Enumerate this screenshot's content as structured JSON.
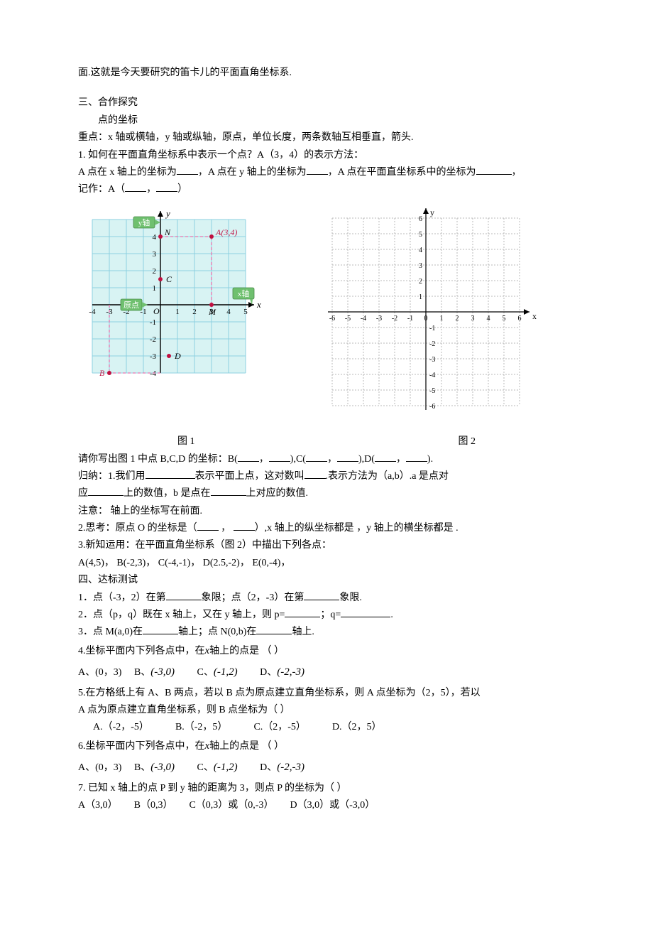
{
  "intro": {
    "line1": "面.这就是今天要研究的笛卡儿的平面直角坐标系."
  },
  "section3": {
    "heading": "三、合作探究",
    "sub": "点的坐标",
    "keypoint": "重点：x 轴或横轴，y 轴或纵轴，原点，单位长度，两条数轴互相垂直，箭头.",
    "q1_line1": "1. 如何在平面直角坐标系中表示一个点？A（3，4）的表示方法：",
    "q1_label_a": "A 点在 x 轴上的坐标为",
    "q1_label_b": "，A 点在 y 轴上的坐标为",
    "q1_label_c": "，A 点在平面直坐标系中的坐标为",
    "q1_label_end": "，",
    "q1_line3_prefix": "记作：A（",
    "q1_line3_mid": "，",
    "q1_line3_suffix": "）",
    "fig1_caption": "图 1",
    "fig2_caption": "图 2",
    "writebcd_prefix": "请你写出图 1 中点 B,C,D 的坐标：B(",
    "writebcd_sep": "，",
    "writebcd_mid1": "),C(",
    "writebcd_mid2": "),D(",
    "writebcd_end": ").",
    "guinao_label": "归纳：1.我们用",
    "guinao_mid": "表示平面上点，这对数叫",
    "guinao_tail": ".表示方法为（a,b）.a 是点对",
    "guinao_line2_prefix": "应",
    "guinao_line2_mid": "上的数值，b 是点在",
    "guinao_line2_tail": "上对应的数值.",
    "note": "注意：       轴上的坐标写在前面.",
    "think_prefix": "2.思考：原点 O 的坐标是（",
    "think_sep": " ， ",
    "think_mid": "）,x 轴上的纵坐标都是    ，y 轴上的横坐标都是    .",
    "newknow": "3.新知运用：在平面直角坐标系（图 2）中描出下列各点：",
    "points": "A(4,5)，  B(-2,3)，  C(-4,-1)，  D(2.5,-2)，  E(0,-4)，"
  },
  "section4": {
    "heading": "四、达标测试",
    "q1_a": "1．点（-3，2）在第",
    "q1_b": "象限；点（2，-3）在第",
    "q1_c": "象限.",
    "q2_a": "2．点（p，q）既在 x 轴上，又在 y 轴上，则 p=",
    "q2_b": "；q=",
    "q2_c": ".",
    "q3_a": "3．点 M(a,0)在",
    "q3_b": "轴上；点 N(0,b)在",
    "q3_c": "轴上.",
    "q4": "4.坐标平面内下列各点中，在",
    "q4_x": "x",
    "q4_tail": "轴上的点是     （    ）",
    "q4_optA": "A、(0，3)",
    "q4_optB_label": "B、",
    "q4_optB_val": "(-3,0)",
    "q4_optC_label": "C、",
    "q4_optC_val": "(-1,2)",
    "q4_optD_label": "D、",
    "q4_optD_val": "(-2,-3)",
    "q5_line1": "5.在方格纸上有 A、B 两点，若以 B 点为原点建立直角坐标系，则 A 点坐标为（2，5），若以",
    "q5_line2": "A 点为原点建立直角坐标系，则 B 点坐标为（  ）",
    "q5_optA": "A.（-2，-5）",
    "q5_optB": "B.（-2，5）",
    "q5_optC": "C.（2，-5）",
    "q5_optD": "D.（2，5）",
    "q6": "6.坐标平面内下列各点中，在",
    "q6_x": "x",
    "q6_tail": "轴上的点是     （    ）",
    "q7_line": "7. 已知 x 轴上的点 P 到 y 轴的距离为 3，则点 P 的坐标为（   ）",
    "q7_optA": "A（3,0）",
    "q7_optB": "B（0,3）",
    "q7_optC": "C（0,3）或（0,-3）",
    "q7_optD": "D（3,0）或（-3,0）"
  },
  "figure1": {
    "grid": {
      "xmin": -4,
      "xmax": 5,
      "ymin": -4,
      "ymax": 5,
      "cell": 24
    },
    "bg": "#d8f3f3",
    "gridline_color": "#8ed0e0",
    "axis_color": "#000000",
    "dash_color": "#e975b0",
    "point_color": "#c01040",
    "points": {
      "A": {
        "x": 3,
        "y": 4,
        "label": "A(3,4)",
        "label_dx": 6,
        "label_dy": -2,
        "label_color": "#c02050"
      },
      "B": {
        "x": -3,
        "y": -4,
        "label": "B",
        "label_dx": -14,
        "label_dy": 4,
        "label_color": "#c02050"
      },
      "C": {
        "x": 0,
        "y": 1.5,
        "label": "C",
        "label_dx": 8,
        "label_dy": 4,
        "label_color": "#000"
      },
      "D": {
        "x": 0.5,
        "y": -3,
        "label": "D",
        "label_dx": 8,
        "label_dy": 4,
        "label_color": "#000"
      },
      "N": {
        "x": 0,
        "y": 4,
        "label": "N",
        "label_dx": 6,
        "label_dy": -2,
        "label_color": "#000"
      },
      "M": {
        "x": 3,
        "y": 0,
        "label": "M",
        "label_dx": -4,
        "label_dy": 14,
        "label_color": "#000"
      }
    },
    "labels": {
      "y_tag_text": "y轴",
      "y_tag_bg": "#6fc06f",
      "x_tag_text": "x轴",
      "x_tag_bg": "#6fc06f",
      "origin_tag_text": "原点",
      "origin_tag_bg": "#6fc06f",
      "O_label": "O",
      "x_ticks": [
        -4,
        -3,
        -2,
        -1,
        1,
        2,
        3,
        4,
        5
      ],
      "y_ticks": [
        -4,
        -3,
        -2,
        -1,
        1,
        2,
        3,
        4
      ],
      "axis_label_x": "x",
      "axis_label_y": "y"
    }
  },
  "figure2": {
    "grid": {
      "xmin": -6,
      "xmax": 6,
      "ymin": -6,
      "ymax": 6,
      "cell": 22
    },
    "gridline_color": "#b8b8b8",
    "grid_dash": "2 2",
    "axis_color": "#000000",
    "x_ticks": [
      -6,
      -5,
      -4,
      -3,
      -2,
      -1,
      0,
      1,
      2,
      3,
      4,
      5,
      6
    ],
    "y_ticks_pos": [
      1,
      2,
      3,
      4,
      5,
      6
    ],
    "y_ticks_neg": [
      -1,
      -2,
      -3,
      -4,
      -5,
      -6
    ],
    "axis_label_x": "x",
    "axis_label_y": "y",
    "tick_font": 10
  }
}
